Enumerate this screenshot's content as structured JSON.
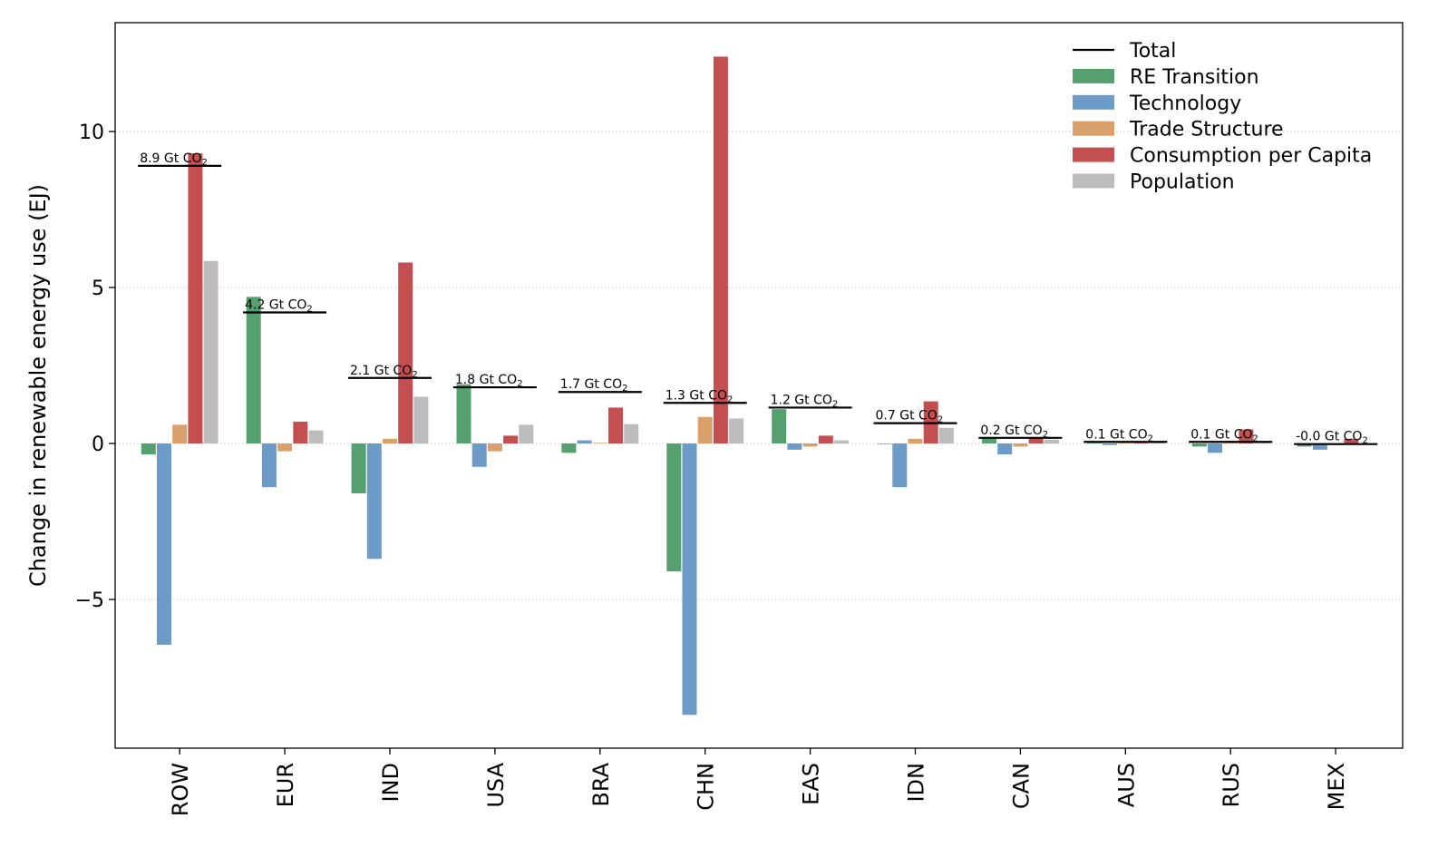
{
  "chart_data": {
    "type": "bar",
    "title": "",
    "xlabel": "",
    "ylabel": "Change in renewable energy use (EJ)",
    "ylim": [
      -9.75,
      13.5
    ],
    "yticks": [
      -5,
      0,
      5,
      10
    ],
    "ytick_labels": [
      "−5",
      "0",
      "5",
      "10"
    ],
    "grid": "horizontal dotted",
    "legend_position": "top-right",
    "categories": [
      "ROW",
      "EUR",
      "IND",
      "USA",
      "BRA",
      "CHN",
      "EAS",
      "IDN",
      "CAN",
      "AUS",
      "RUS",
      "MEX"
    ],
    "series": [
      {
        "name": "RE Transition",
        "color": "#55a06e",
        "values": [
          -0.35,
          4.7,
          -1.6,
          1.9,
          -0.3,
          -4.1,
          1.1,
          0.0,
          0.15,
          0.02,
          -0.1,
          -0.1
        ]
      },
      {
        "name": "Technology",
        "color": "#6b9bc6",
        "values": [
          -6.45,
          -1.4,
          -3.7,
          -0.75,
          0.1,
          -8.7,
          -0.2,
          -1.4,
          -0.35,
          -0.05,
          -0.3,
          -0.2
        ]
      },
      {
        "name": "Trade Structure",
        "color": "#d9a06b",
        "values": [
          0.6,
          -0.25,
          0.15,
          -0.25,
          0.02,
          0.85,
          -0.1,
          0.15,
          -0.1,
          0.02,
          0.02,
          -0.05
        ]
      },
      {
        "name": "Consumption per Capita",
        "color": "#c44f51",
        "values": [
          9.3,
          0.7,
          5.8,
          0.25,
          1.15,
          12.4,
          0.25,
          1.35,
          0.2,
          0.02,
          0.45,
          0.15
        ]
      },
      {
        "name": "Population",
        "color": "#bcbcbc",
        "values": [
          5.85,
          0.42,
          1.5,
          0.6,
          0.62,
          0.8,
          0.1,
          0.5,
          0.12,
          0.02,
          0.02,
          0.0
        ]
      }
    ],
    "totals": {
      "name": "Total",
      "color": "#000000",
      "values": [
        8.9,
        4.2,
        2.1,
        1.8,
        1.65,
        1.3,
        1.15,
        0.65,
        0.18,
        0.05,
        0.05,
        -0.02
      ],
      "annotation_values": [
        "8.9",
        "4.2",
        "2.1",
        "1.8",
        "1.7",
        "1.3",
        "1.2",
        "0.7",
        "0.2",
        "0.1",
        "0.1",
        "-0.0"
      ],
      "annotation_unit": "Gt CO",
      "annotation_subscript": "2"
    },
    "legend": [
      "Total",
      "RE Transition",
      "Technology",
      "Trade Structure",
      "Consumption per Capita",
      "Population"
    ]
  }
}
